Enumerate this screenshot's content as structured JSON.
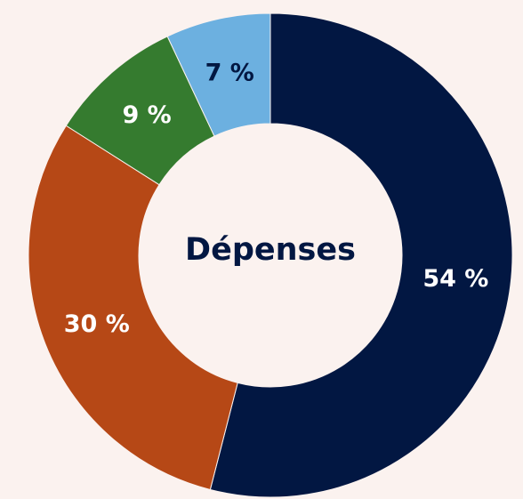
{
  "chart_data": {
    "type": "pie",
    "center_label": "Dépenses",
    "slices": [
      {
        "value": 54,
        "label": "54 %",
        "color": "#021742",
        "label_color": "#ffffff"
      },
      {
        "value": 30,
        "label": "30 %",
        "color": "#b64816",
        "label_color": "#ffffff"
      },
      {
        "value": 9,
        "label": "9 %",
        "color": "#357b2f",
        "label_color": "#ffffff"
      },
      {
        "value": 7,
        "label": "7 %",
        "color": "#6cb0e0",
        "label_color": "#021742"
      }
    ],
    "center_color": "#021742",
    "background_color": "#fbf2ef",
    "slice_border_color": "#fbf2ef"
  }
}
